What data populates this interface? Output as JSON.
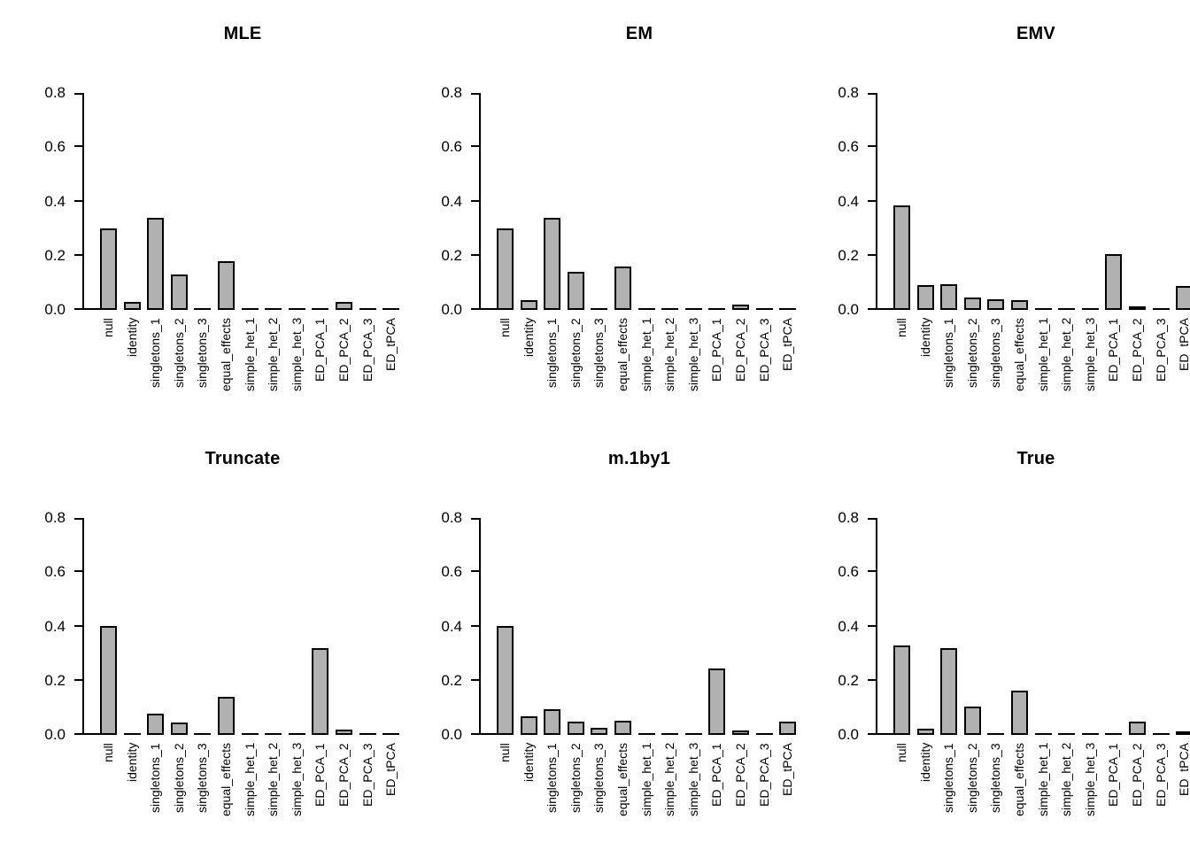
{
  "figure": {
    "background": "#ffffff",
    "text_color": "#000000"
  },
  "chart_data": {
    "type": "bar",
    "layout": "2x3 grid of subplots, no gridlines, no legend",
    "grid": "off",
    "bar_fill": "#b1b1b1",
    "bar_border": "#000000",
    "ylim": [
      0,
      0.8
    ],
    "ytick_values": [
      0,
      0.2,
      0.4,
      0.6,
      0.8
    ],
    "yticks": [
      "0.0",
      "0.2",
      "0.4",
      "0.6",
      "0.8"
    ],
    "categories": [
      "null",
      "identity",
      "singletons_1",
      "singletons_2",
      "singletons_3",
      "equal_effects",
      "simple_het_1",
      "simple_het_2",
      "simple_het_3",
      "ED_PCA_1",
      "ED_PCA_2",
      "ED_PCA_3",
      "ED_tPCA"
    ],
    "subplots": [
      {
        "title": "MLE",
        "values": [
          0.3,
          0.03,
          0.34,
          0.13,
          0,
          0.18,
          0,
          0,
          0,
          0,
          0.03,
          0,
          0
        ]
      },
      {
        "title": "EM",
        "values": [
          0.3,
          0.035,
          0.34,
          0.14,
          0,
          0.16,
          0,
          0,
          0.008,
          0,
          0.02,
          0,
          0
        ]
      },
      {
        "title": "EMV",
        "values": [
          0.385,
          0.09,
          0.095,
          0.045,
          0.04,
          0.037,
          0,
          0,
          0,
          0.205,
          0.013,
          0,
          0.088
        ]
      },
      {
        "title": "Truncate",
        "values": [
          0.4,
          0,
          0.078,
          0.045,
          0,
          0.14,
          0,
          0,
          0,
          0.32,
          0.02,
          0,
          0
        ]
      },
      {
        "title": "m.1by1",
        "values": [
          0.4,
          0.068,
          0.095,
          0.048,
          0.027,
          0.053,
          0,
          0,
          0,
          0.245,
          0.017,
          0,
          0.05
        ]
      },
      {
        "title": "True",
        "values": [
          0.33,
          0.024,
          0.32,
          0.105,
          0,
          0.163,
          0,
          0,
          0,
          0,
          0.05,
          0,
          0.012
        ]
      }
    ]
  }
}
